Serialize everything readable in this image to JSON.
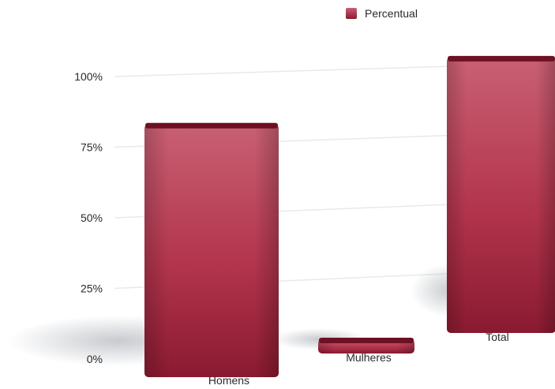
{
  "chart_data": {
    "type": "bar",
    "categories": [
      "Homens",
      "Mulheres",
      "Total"
    ],
    "series": [
      {
        "name": "Percentual",
        "values": [
          90,
          4,
          100
        ],
        "color": "#b83550"
      }
    ],
    "ylim": [
      0,
      100
    ],
    "yticks": [
      "0%",
      "25%",
      "50%",
      "75%",
      "100%"
    ],
    "title": "",
    "xlabel": "",
    "ylabel": "",
    "legend": "top-center",
    "grid": true,
    "colors": {
      "bar_top": "#c96073",
      "bar_mid": "#b2354d",
      "bar_bottom": "#8a1a30",
      "bar_cap": "#6e1023",
      "grid": "#e9e9e9",
      "shadow": "#9aa0a8"
    }
  }
}
